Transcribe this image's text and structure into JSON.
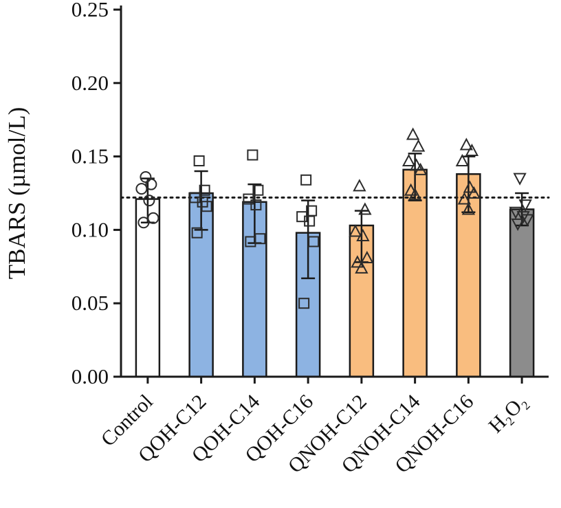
{
  "figure": {
    "description": "Bar chart with scatter overlay of TBARS levels across treatment groups"
  },
  "chart_data": {
    "type": "bar",
    "title": "",
    "xlabel": "",
    "ylabel": "TBARS (µmol/L)",
    "ylim": [
      0,
      0.25
    ],
    "yticks": [
      0.0,
      0.05,
      0.1,
      0.15,
      0.2,
      0.25
    ],
    "ytick_format_decimals": 2,
    "grid": false,
    "legend_position": "none",
    "reference_line": 0.122,
    "reference_line_style": "dotted",
    "categories": [
      "Control",
      "QOH-C12",
      "QOH-C14",
      "QOH-C16",
      "QNOH-C12",
      "QNOH-C14",
      "QNOH-C16",
      "H₂O₂"
    ],
    "series": [
      {
        "label": "Control",
        "mean": 0.121,
        "err_low": 0.105,
        "err_high": 0.135,
        "color": "#ffffff",
        "marker": "circle",
        "points": [
          0.136,
          0.131,
          0.128,
          0.12,
          0.108,
          0.105
        ]
      },
      {
        "label": "QOH-C12",
        "mean": 0.125,
        "err_low": 0.1,
        "err_high": 0.14,
        "color": "#8db3e2",
        "marker": "square",
        "points": [
          0.147,
          0.127,
          0.122,
          0.119,
          0.116,
          0.098
        ]
      },
      {
        "label": "QOH-C14",
        "mean": 0.119,
        "err_low": 0.091,
        "err_high": 0.131,
        "color": "#8db3e2",
        "marker": "square",
        "points": [
          0.151,
          0.127,
          0.121,
          0.117,
          0.094,
          0.092
        ]
      },
      {
        "label": "QOH-C16",
        "mean": 0.098,
        "err_low": 0.067,
        "err_high": 0.12,
        "color": "#8db3e2",
        "marker": "square",
        "points": [
          0.134,
          0.113,
          0.109,
          0.106,
          0.092,
          0.05
        ]
      },
      {
        "label": "QNOH-C12",
        "mean": 0.103,
        "err_low": 0.078,
        "err_high": 0.113,
        "color": "#f9bd7f",
        "marker": "triangle-up",
        "points": [
          0.13,
          0.114,
          0.099,
          0.096,
          0.081,
          0.078,
          0.074
        ]
      },
      {
        "label": "QNOH-C14",
        "mean": 0.141,
        "err_low": 0.12,
        "err_high": 0.152,
        "color": "#f9bd7f",
        "marker": "triangle-up",
        "points": [
          0.165,
          0.157,
          0.147,
          0.144,
          0.141,
          0.127,
          0.124
        ]
      },
      {
        "label": "QNOH-C16",
        "mean": 0.138,
        "err_low": 0.112,
        "err_high": 0.15,
        "color": "#f9bd7f",
        "marker": "triangle-up",
        "points": [
          0.158,
          0.154,
          0.147,
          0.129,
          0.125,
          0.121,
          0.114
        ]
      },
      {
        "label": "H₂O₂",
        "mean": 0.114,
        "err_low": 0.103,
        "err_high": 0.125,
        "color": "#8c8c8c",
        "marker": "triangle-down",
        "points": [
          0.135,
          0.117,
          0.112,
          0.109,
          0.107,
          0.104
        ]
      }
    ],
    "colors": {
      "bar_outline": "#1a1a1a",
      "axis": "#1a1a1a",
      "marker_stroke": "#2b2b2b",
      "reference_line": "#1a1a1a",
      "blue_group": "#8db3e2",
      "orange_group": "#f9bd7f",
      "gray_group": "#8c8c8c",
      "control_group": "#ffffff"
    }
  }
}
